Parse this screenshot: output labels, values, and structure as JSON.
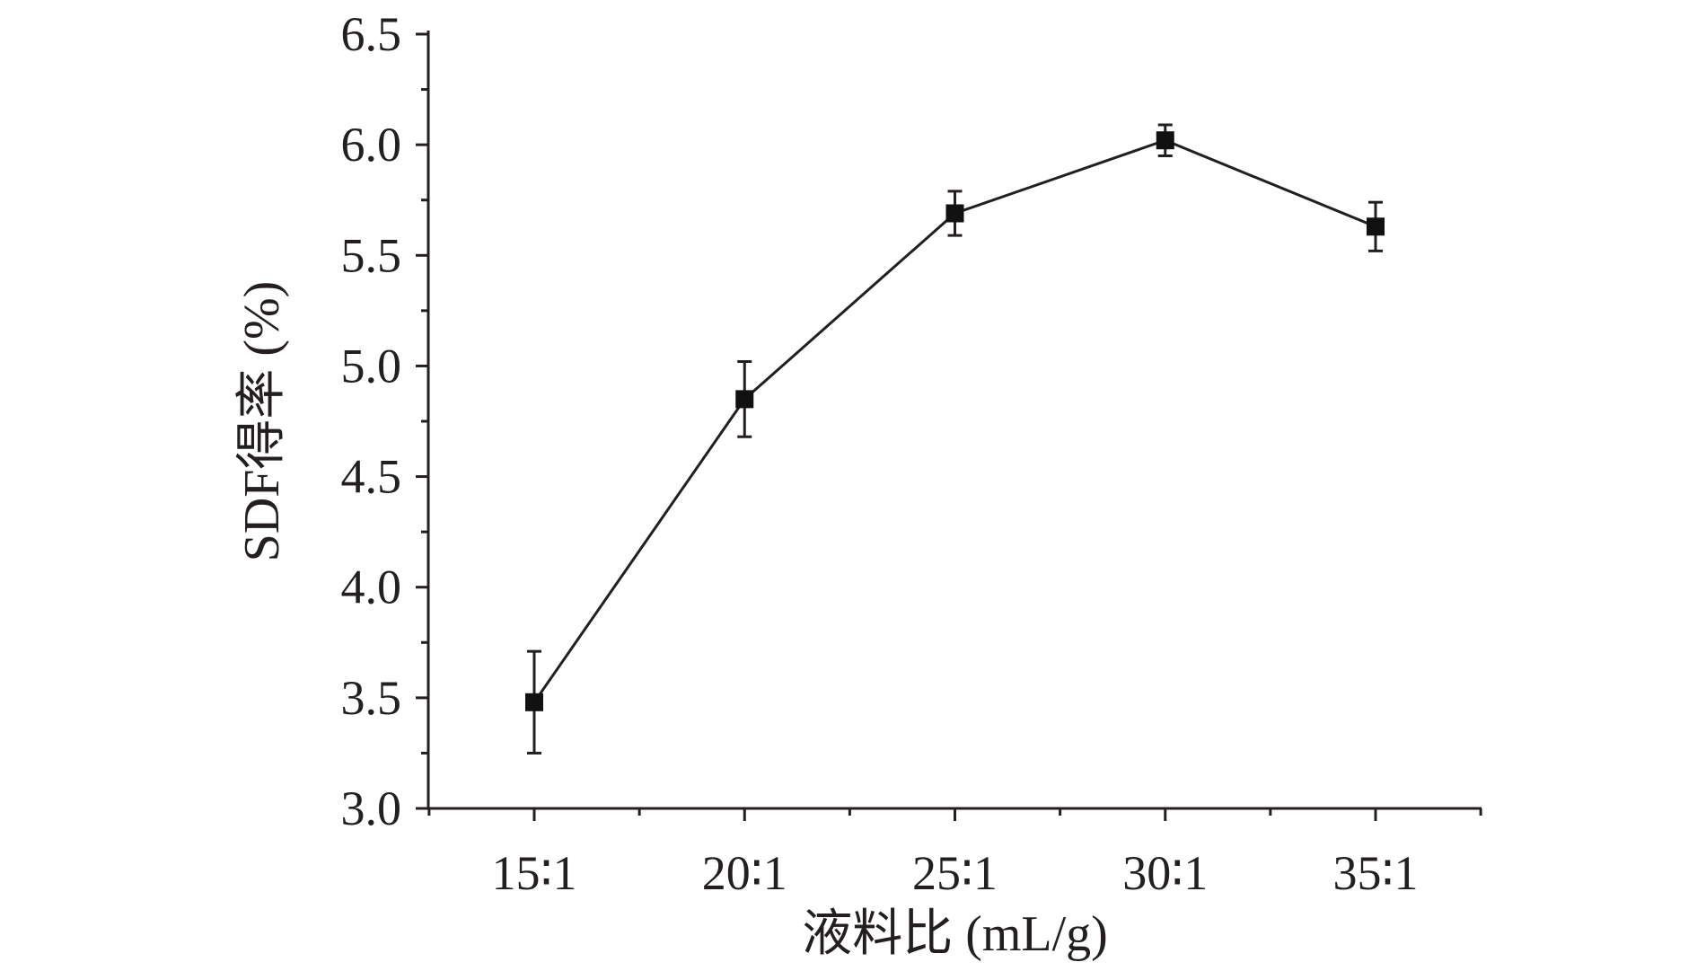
{
  "chart_data": {
    "type": "line",
    "title": "",
    "xlabel": "液料比 (mL/g)",
    "ylabel": "SDF得率 (%)",
    "categories": [
      "15∶1",
      "20∶1",
      "25∶1",
      "30∶1",
      "35∶1"
    ],
    "series": [
      {
        "values": [
          3.48,
          4.85,
          5.69,
          6.02,
          5.63
        ],
        "errors": [
          0.23,
          0.17,
          0.1,
          0.07,
          0.11
        ]
      }
    ],
    "ylim": [
      3.0,
      6.5
    ],
    "yticks": [
      "3.0",
      "3.5",
      "4.0",
      "4.5",
      "5.0",
      "5.5",
      "6.0",
      "6.5"
    ],
    "grid": false,
    "legend": "none",
    "colors": {
      "line": "#231f20",
      "marker": "#111111"
    }
  }
}
